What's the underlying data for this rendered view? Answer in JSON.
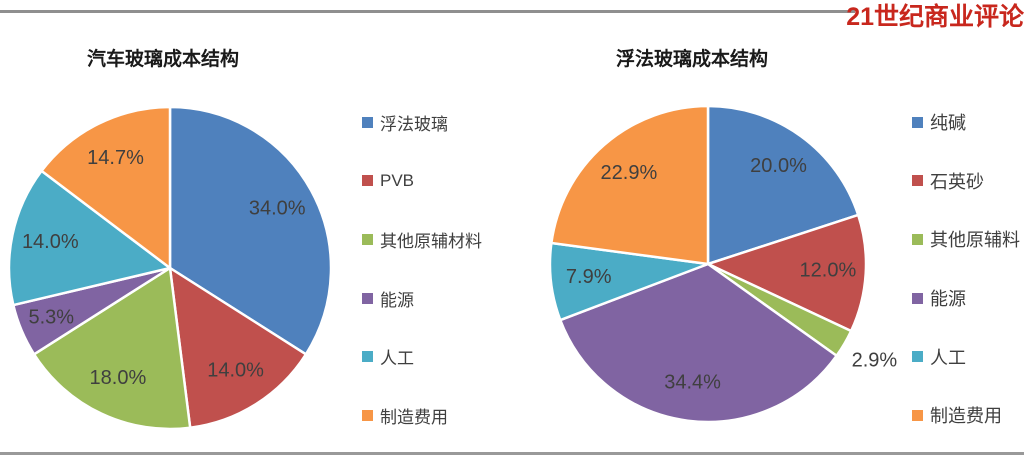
{
  "header": {
    "logo_text": "21世纪商业评论"
  },
  "chart_data": [
    {
      "type": "pie",
      "title": "汽车玻璃成本结构",
      "start_angle": "12-oclock",
      "direction": "clockwise",
      "legend_position": "right",
      "label_format": "percent",
      "slices": [
        {
          "label": "浮法玻璃",
          "value": 34.0,
          "display": "34.0%",
          "color": "#4f81bd"
        },
        {
          "label": "PVB",
          "value": 14.0,
          "display": "14.0%",
          "color": "#c0504d"
        },
        {
          "label": "其他原辅材料",
          "value": 18.0,
          "display": "18.0%",
          "color": "#9bbb59"
        },
        {
          "label": "能源",
          "value": 5.3,
          "display": "5.3%",
          "color": "#8064a2"
        },
        {
          "label": "人工",
          "value": 14.0,
          "display": "14.0%",
          "color": "#4bacc6"
        },
        {
          "label": "制造费用",
          "value": 14.7,
          "display": "14.7%",
          "color": "#f79646"
        }
      ]
    },
    {
      "type": "pie",
      "title": "浮法玻璃成本结构",
      "start_angle": "12-oclock",
      "direction": "clockwise",
      "legend_position": "right",
      "label_format": "percent",
      "slices": [
        {
          "label": "纯碱",
          "value": 20.0,
          "display": "20.0%",
          "color": "#4f81bd"
        },
        {
          "label": "石英砂",
          "value": 12.0,
          "display": "12.0%",
          "color": "#c0504d"
        },
        {
          "label": "其他原辅料",
          "value": 2.9,
          "display": "2.9%",
          "color": "#9bbb59",
          "label_outside": true
        },
        {
          "label": "能源",
          "value": 34.4,
          "display": "34.4%",
          "color": "#8064a2"
        },
        {
          "label": "人工",
          "value": 7.9,
          "display": "7.9%",
          "color": "#4bacc6"
        },
        {
          "label": "制造费用",
          "value": 22.9,
          "display": "22.9%",
          "color": "#f79646"
        }
      ]
    }
  ]
}
